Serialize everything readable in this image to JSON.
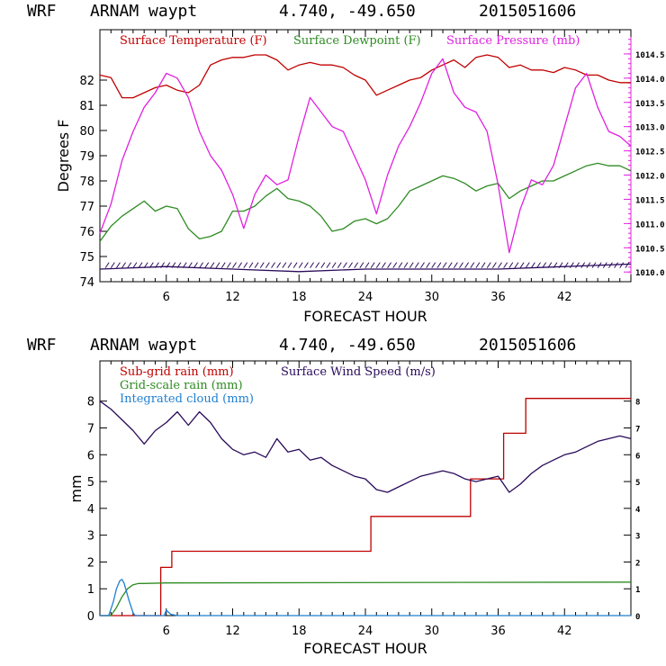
{
  "chart_data": [
    {
      "type": "line",
      "header": {
        "model": "WRF",
        "station": "ARNAM waypt",
        "coords": "4.740, -49.650",
        "date": "2015051606"
      },
      "xlabel": "FORECAST HOUR",
      "ylabel": "Degrees F",
      "xlim": [
        0,
        48
      ],
      "ylim": [
        74,
        84
      ],
      "y2lim": [
        1009.8,
        1015
      ],
      "xticks": [
        6,
        12,
        18,
        24,
        30,
        36,
        42
      ],
      "yticks": [
        74,
        75,
        76,
        77,
        78,
        79,
        80,
        81,
        82
      ],
      "y2ticks": [
        "1010.0",
        "1010.5",
        "1011.0",
        "1011.5",
        "1012.0",
        "1012.5",
        "1013.0",
        "1013.5",
        "1014.0",
        "1014.5"
      ],
      "legend": [
        {
          "label": "Surface Temperature (F)",
          "color": "#c00000"
        },
        {
          "label": "Surface Dewpoint (F)",
          "color": "#2e8b22"
        },
        {
          "label": "Surface Pressure (mb)",
          "color": "#e020e0"
        }
      ],
      "series": [
        {
          "name": "Surface Temperature (F)",
          "color": "#c00000",
          "axis": "left",
          "x": [
            0,
            1,
            2,
            3,
            4,
            5,
            6,
            7,
            8,
            9,
            10,
            11,
            12,
            13,
            14,
            15,
            16,
            17,
            18,
            19,
            20,
            21,
            22,
            23,
            24,
            25,
            26,
            27,
            28,
            29,
            30,
            31,
            32,
            33,
            34,
            35,
            36,
            37,
            38,
            39,
            40,
            41,
            42,
            43,
            44,
            45,
            46,
            47,
            48
          ],
          "y": [
            82.2,
            82.1,
            81.3,
            81.3,
            81.5,
            81.7,
            81.8,
            81.6,
            81.5,
            81.8,
            82.6,
            82.8,
            82.9,
            82.9,
            83.0,
            83.0,
            82.8,
            82.4,
            82.6,
            82.7,
            82.6,
            82.6,
            82.5,
            82.2,
            82.0,
            81.4,
            81.6,
            81.8,
            82.0,
            82.1,
            82.4,
            82.6,
            82.8,
            82.5,
            82.9,
            83.0,
            82.9,
            82.5,
            82.6,
            82.4,
            82.4,
            82.3,
            82.5,
            82.4,
            82.2,
            82.2,
            82.0,
            81.9,
            81.9
          ]
        },
        {
          "name": "Surface Dewpoint (F)",
          "color": "#2e8b22",
          "axis": "left",
          "x": [
            0,
            1,
            2,
            3,
            4,
            5,
            6,
            7,
            8,
            9,
            10,
            11,
            12,
            13,
            14,
            15,
            16,
            17,
            18,
            19,
            20,
            21,
            22,
            23,
            24,
            25,
            26,
            27,
            28,
            29,
            30,
            31,
            32,
            33,
            34,
            35,
            36,
            37,
            38,
            39,
            40,
            41,
            42,
            43,
            44,
            45,
            46,
            47,
            48
          ],
          "y": [
            75.6,
            76.2,
            76.6,
            76.9,
            77.2,
            76.8,
            77.0,
            76.9,
            76.1,
            75.7,
            75.8,
            76.0,
            76.8,
            76.8,
            77.0,
            77.4,
            77.7,
            77.3,
            77.2,
            77.0,
            76.6,
            76.0,
            76.1,
            76.4,
            76.5,
            76.3,
            76.5,
            77.0,
            77.6,
            77.8,
            78.0,
            78.2,
            78.1,
            77.9,
            77.6,
            77.8,
            77.9,
            77.3,
            77.6,
            77.8,
            78.0,
            78.0,
            78.2,
            78.4,
            78.6,
            78.7,
            78.6,
            78.6,
            78.4
          ]
        },
        {
          "name": "Surface Pressure (mb)",
          "color": "#e020e0",
          "axis": "right",
          "x": [
            0,
            1,
            2,
            3,
            4,
            5,
            6,
            7,
            8,
            9,
            10,
            11,
            12,
            13,
            14,
            15,
            16,
            17,
            18,
            19,
            20,
            21,
            22,
            23,
            24,
            25,
            26,
            27,
            28,
            29,
            30,
            31,
            32,
            33,
            34,
            35,
            36,
            37,
            38,
            39,
            40,
            41,
            42,
            43,
            44,
            45,
            46,
            47,
            48
          ],
          "y": [
            1010.8,
            1011.4,
            1012.3,
            1012.9,
            1013.4,
            1013.7,
            1014.1,
            1014.0,
            1013.6,
            1012.9,
            1012.4,
            1012.1,
            1011.6,
            1010.9,
            1011.6,
            1012.0,
            1011.8,
            1011.9,
            1012.8,
            1013.6,
            1013.3,
            1013.0,
            1012.9,
            1012.4,
            1011.9,
            1011.2,
            1012.0,
            1012.6,
            1013.0,
            1013.5,
            1014.1,
            1014.4,
            1013.7,
            1013.4,
            1013.3,
            1012.9,
            1011.8,
            1010.4,
            1011.3,
            1011.9,
            1011.8,
            1012.2,
            1013.0,
            1013.8,
            1014.1,
            1013.4,
            1012.9,
            1012.8,
            1012.6
          ]
        },
        {
          "name": "Wind barbs",
          "color": "#2a0a5a",
          "axis": "left",
          "x": [
            0,
            6,
            12,
            18,
            24,
            30,
            36,
            42,
            48
          ],
          "y": [
            74.5,
            74.6,
            74.5,
            74.4,
            74.5,
            74.5,
            74.5,
            74.6,
            74.7
          ]
        }
      ]
    },
    {
      "type": "line",
      "header": {
        "model": "WRF",
        "station": "ARNAM waypt",
        "coords": "4.740, -49.650",
        "date": "2015051606"
      },
      "xlabel": "FORECAST HOUR",
      "ylabel": "mm",
      "xlim": [
        0,
        48
      ],
      "ylim": [
        0,
        9.5
      ],
      "y2lim": [
        0,
        9.5
      ],
      "xticks": [
        6,
        12,
        18,
        24,
        30,
        36,
        42
      ],
      "yticks": [
        0,
        1,
        2,
        3,
        4,
        5,
        6,
        7,
        8
      ],
      "y2ticks": [
        "0",
        "1",
        "2",
        "3",
        "4",
        "5",
        "6",
        "7",
        "8"
      ],
      "legend": [
        {
          "label": "Sub-grid rain (mm)",
          "color": "#c00000"
        },
        {
          "label": "Surface Wind Speed (m/s)",
          "color": "#2a0a5a"
        },
        {
          "label": "Grid-scale rain (mm)",
          "color": "#2e8b22"
        },
        {
          "label": "Integrated cloud (mm)",
          "color": "#1e7fd0"
        }
      ],
      "series": [
        {
          "name": "Sub-grid rain (mm)",
          "color": "#c00000",
          "step": true,
          "x": [
            0,
            4.5,
            5.5,
            6.5,
            24.5,
            33.5,
            36.5,
            38.5,
            48
          ],
          "y": [
            0,
            0,
            1.8,
            2.4,
            3.7,
            5.1,
            6.8,
            8.1,
            8.1
          ]
        },
        {
          "name": "Grid-scale rain (mm)",
          "color": "#2e8b22",
          "x": [
            0,
            1,
            1.5,
            2,
            2.5,
            3,
            3.5,
            4,
            6,
            48
          ],
          "y": [
            0,
            0,
            0.3,
            0.7,
            1.0,
            1.15,
            1.2,
            1.2,
            1.22,
            1.25
          ]
        },
        {
          "name": "Integrated cloud (mm)",
          "color": "#1e7fd0",
          "x": [
            0,
            0.8,
            1.2,
            1.5,
            1.8,
            2.0,
            2.2,
            2.6,
            3.0,
            3.2,
            5,
            5.8,
            6,
            6.4,
            7,
            48
          ],
          "y": [
            0,
            0,
            0.5,
            1.0,
            1.3,
            1.35,
            1.2,
            0.6,
            0.1,
            0,
            0,
            0,
            0.2,
            0.05,
            0,
            0
          ]
        },
        {
          "name": "Surface Wind Speed (m/s)",
          "color": "#2a0a5a",
          "x": [
            0,
            1,
            2,
            3,
            4,
            5,
            6,
            7,
            8,
            9,
            10,
            11,
            12,
            13,
            14,
            15,
            16,
            17,
            18,
            19,
            20,
            21,
            22,
            23,
            24,
            25,
            26,
            27,
            28,
            29,
            30,
            31,
            32,
            33,
            34,
            35,
            36,
            37,
            38,
            39,
            40,
            41,
            42,
            43,
            44,
            45,
            46,
            47,
            48
          ],
          "y": [
            8.0,
            7.7,
            7.3,
            6.9,
            6.4,
            6.9,
            7.2,
            7.6,
            7.1,
            7.6,
            7.2,
            6.6,
            6.2,
            6.0,
            6.1,
            5.9,
            6.6,
            6.1,
            6.2,
            5.8,
            5.9,
            5.6,
            5.4,
            5.2,
            5.1,
            4.7,
            4.6,
            4.8,
            5.0,
            5.2,
            5.3,
            5.4,
            5.3,
            5.1,
            5.0,
            5.1,
            5.2,
            4.6,
            4.9,
            5.3,
            5.6,
            5.8,
            6.0,
            6.1,
            6.3,
            6.5,
            6.6,
            6.7,
            6.6
          ]
        }
      ]
    }
  ]
}
